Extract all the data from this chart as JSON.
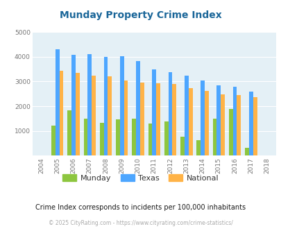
{
  "title": "Munday Property Crime Index",
  "years": [
    2004,
    2005,
    2006,
    2007,
    2008,
    2009,
    2010,
    2011,
    2012,
    2013,
    2014,
    2015,
    2016,
    2017,
    2018
  ],
  "munday": [
    0,
    1220,
    1840,
    1500,
    1340,
    1460,
    1500,
    1310,
    1380,
    760,
    630,
    1500,
    1900,
    320,
    0
  ],
  "texas": [
    0,
    4300,
    4080,
    4100,
    4000,
    4030,
    3820,
    3480,
    3380,
    3250,
    3050,
    2840,
    2780,
    2590,
    0
  ],
  "national": [
    0,
    3440,
    3340,
    3250,
    3210,
    3050,
    2950,
    2920,
    2890,
    2720,
    2610,
    2490,
    2460,
    2370,
    0
  ],
  "munday_color": "#8dc63f",
  "texas_color": "#4da6ff",
  "national_color": "#ffb347",
  "bg_color": "#e4f0f6",
  "ylim": [
    0,
    5000
  ],
  "yticks": [
    0,
    1000,
    2000,
    3000,
    4000,
    5000
  ],
  "subtitle": "Crime Index corresponds to incidents per 100,000 inhabitants",
  "footer": "© 2025 CityRating.com - https://www.cityrating.com/crime-statistics/",
  "title_color": "#1a6699",
  "subtitle_color": "#1a1a1a",
  "footer_color": "#aaaaaa"
}
